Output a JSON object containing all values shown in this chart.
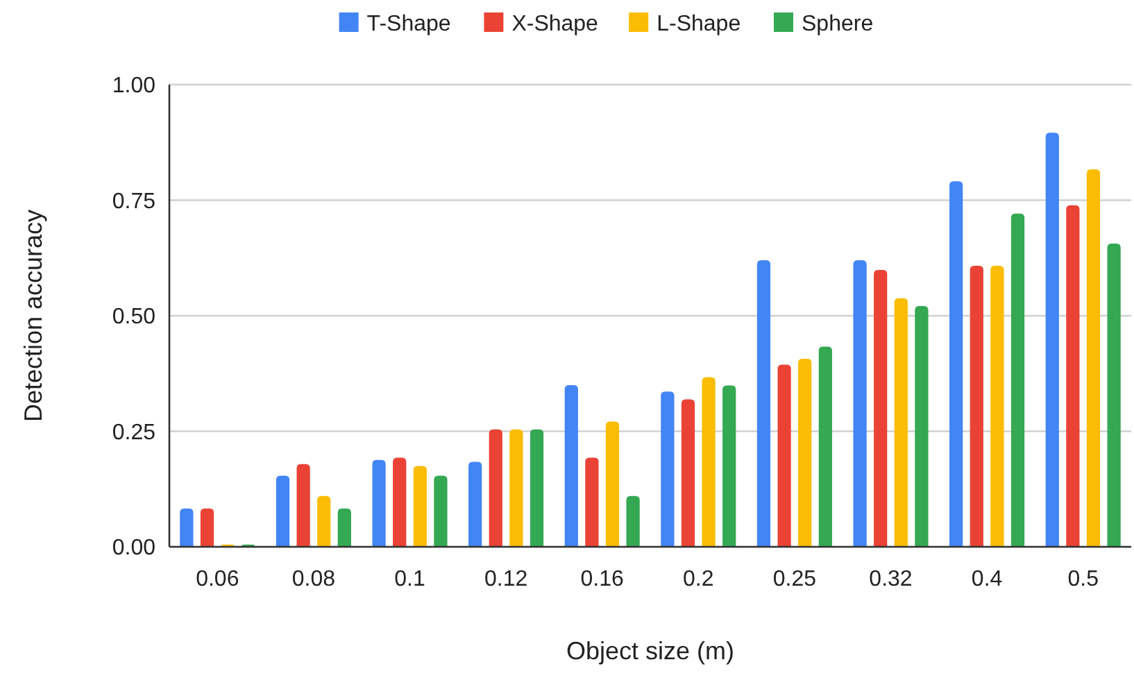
{
  "chart_data": {
    "type": "bar",
    "xlabel": "Object size (m)",
    "ylabel": "Detection accuracy",
    "categories": [
      "0.06",
      "0.08",
      "0.1",
      "0.12",
      "0.16",
      "0.2",
      "0.25",
      "0.32",
      "0.4",
      "0.5"
    ],
    "series": [
      {
        "name": "T-Shape",
        "color": "#4285f4",
        "values": [
          0.083,
          0.154,
          0.188,
          0.184,
          0.35,
          0.336,
          0.62,
          0.62,
          0.791,
          0.896
        ]
      },
      {
        "name": "X-Shape",
        "color": "#ea4335",
        "values": [
          0.083,
          0.179,
          0.193,
          0.254,
          0.193,
          0.319,
          0.394,
          0.599,
          0.608,
          0.739
        ]
      },
      {
        "name": "L-Shape",
        "color": "#fbbc04",
        "values": [
          0.005,
          0.11,
          0.175,
          0.254,
          0.271,
          0.367,
          0.407,
          0.538,
          0.608,
          0.817
        ]
      },
      {
        "name": "Sphere",
        "color": "#34a853",
        "values": [
          0.005,
          0.083,
          0.154,
          0.254,
          0.11,
          0.349,
          0.433,
          0.521,
          0.721,
          0.656
        ]
      }
    ],
    "ylim": [
      0,
      1
    ],
    "yticks": [
      {
        "value": 0,
        "label": "0.00"
      },
      {
        "value": 0.25,
        "label": "0.25"
      },
      {
        "value": 0.5,
        "label": "0.50"
      },
      {
        "value": 0.75,
        "label": "0.75"
      },
      {
        "value": 1,
        "label": "1.00"
      }
    ],
    "grid": "y",
    "legend": "top"
  }
}
